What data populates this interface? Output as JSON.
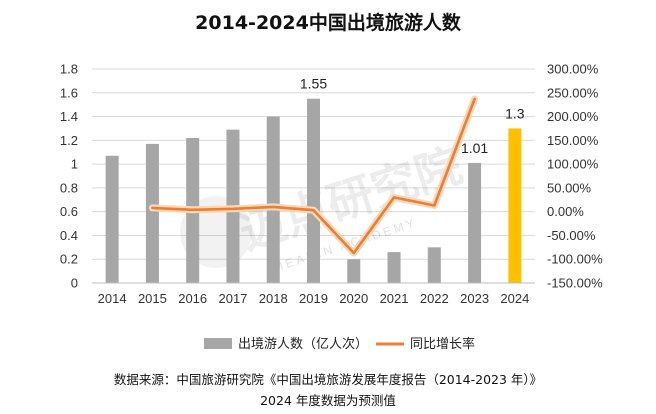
{
  "chart_data": {
    "type": "bar",
    "title": "2014-2024中国出境旅游人数",
    "categories": [
      "2014",
      "2015",
      "2016",
      "2017",
      "2018",
      "2019",
      "2020",
      "2021",
      "2022",
      "2023",
      "2024"
    ],
    "series": [
      {
        "name": "出境游人数（亿人次）",
        "kind": "bar",
        "axis": "left",
        "color": "#a6a6a6",
        "highlight_color": "#ffc000",
        "highlight_index": 10,
        "values": [
          1.07,
          1.17,
          1.22,
          1.29,
          1.4,
          1.55,
          0.2,
          0.26,
          0.3,
          1.01,
          1.3
        ]
      },
      {
        "name": "同比增长率",
        "kind": "line",
        "axis": "right",
        "color": "#ed7d31",
        "values": [
          null,
          8.0,
          4.0,
          6.0,
          10.0,
          3.0,
          -87.0,
          30.0,
          13.0,
          237.0,
          null
        ]
      }
    ],
    "data_labels": [
      {
        "index": 5,
        "text": "1.55"
      },
      {
        "index": 9,
        "text": "1.01"
      },
      {
        "index": 10,
        "text": "1.3"
      }
    ],
    "y_left": {
      "min": 0,
      "max": 1.8,
      "step": 0.2,
      "ticks": [
        "0",
        "0.2",
        "0.4",
        "0.6",
        "0.8",
        "1",
        "1.2",
        "1.4",
        "1.6",
        "1.8"
      ]
    },
    "y_right": {
      "min": -150,
      "max": 300,
      "step": 50,
      "ticks": [
        "-150.00%",
        "-100.00%",
        "-50.00%",
        "0.00%",
        "50.00%",
        "100.00%",
        "150.00%",
        "200.00%",
        "250.00%",
        "300.00%"
      ]
    },
    "grid": true,
    "legend_position": "bottom"
  },
  "watermark": {
    "text": "迈点研究院",
    "sub": "MEADIN ACADEMY"
  },
  "source_line": "数据来源：中国旅游研究院《中国出境旅游发展年度报告（2014-2023 年）》",
  "note_line": "2024 年度数据为预测值"
}
